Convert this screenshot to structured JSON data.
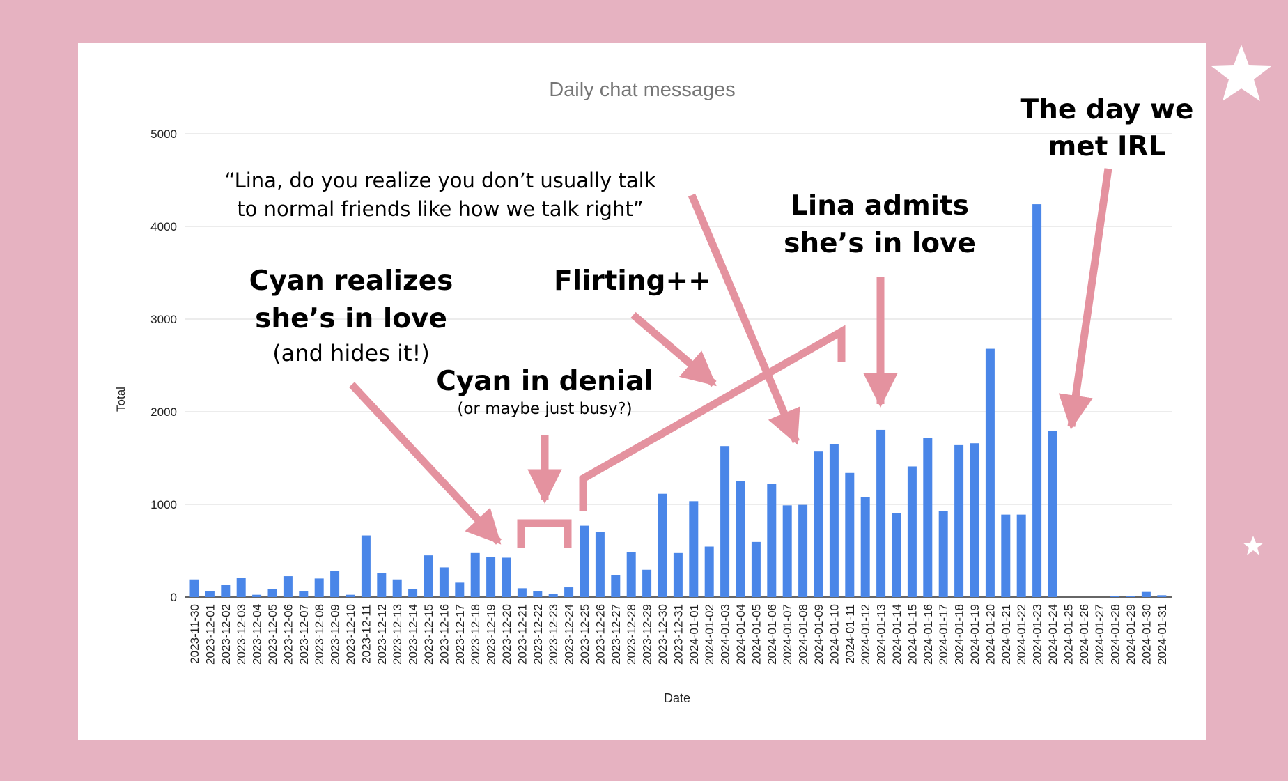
{
  "colors": {
    "page_background": "#e6b2c1",
    "card_background": "#ffffff",
    "bar": "#4a86e8",
    "annotation": "#e4929f",
    "gridline": "#d9d9d9",
    "axis_text": "#222222",
    "title_text": "#757575"
  },
  "decorations": [
    "star-icon",
    "star-icon"
  ],
  "chart_data": {
    "type": "bar",
    "title": "Daily chat messages",
    "xlabel": "Date",
    "ylabel": "Total",
    "ylim": [
      0,
      5000
    ],
    "yticks": [
      0,
      1000,
      2000,
      3000,
      4000,
      5000
    ],
    "grid": true,
    "legend": "none",
    "categories": [
      "2023-11-30",
      "2023-12-01",
      "2023-12-02",
      "2023-12-03",
      "2023-12-04",
      "2023-12-05",
      "2023-12-06",
      "2023-12-07",
      "2023-12-08",
      "2023-12-09",
      "2023-12-10",
      "2023-12-11",
      "2023-12-12",
      "2023-12-13",
      "2023-12-14",
      "2023-12-15",
      "2023-12-16",
      "2023-12-17",
      "2023-12-18",
      "2023-12-19",
      "2023-12-20",
      "2023-12-21",
      "2023-12-22",
      "2023-12-23",
      "2023-12-24",
      "2023-12-25",
      "2023-12-26",
      "2023-12-27",
      "2023-12-28",
      "2023-12-29",
      "2023-12-30",
      "2023-12-31",
      "2024-01-01",
      "2024-01-02",
      "2024-01-03",
      "2024-01-04",
      "2024-01-05",
      "2024-01-06",
      "2024-01-07",
      "2024-01-08",
      "2024-01-09",
      "2024-01-10",
      "2024-01-11",
      "2024-01-12",
      "2024-01-13",
      "2024-01-14",
      "2024-01-15",
      "2024-01-16",
      "2024-01-17",
      "2024-01-18",
      "2024-01-19",
      "2024-01-20",
      "2024-01-21",
      "2024-01-22",
      "2024-01-23",
      "2024-01-24",
      "2024-01-25",
      "2024-01-26",
      "2024-01-27",
      "2024-01-28",
      "2024-01-29",
      "2024-01-30",
      "2024-01-31"
    ],
    "values": [
      190,
      60,
      130,
      210,
      25,
      85,
      225,
      60,
      200,
      285,
      25,
      665,
      260,
      190,
      85,
      450,
      320,
      155,
      475,
      430,
      425,
      95,
      60,
      35,
      105,
      770,
      700,
      240,
      485,
      295,
      1115,
      475,
      1035,
      545,
      1630,
      1250,
      595,
      1225,
      990,
      995,
      1570,
      1650,
      1340,
      1080,
      1805,
      905,
      1410,
      1720,
      925,
      1640,
      1660,
      2680,
      890,
      890,
      4240,
      1790,
      0,
      0,
      0,
      10,
      10,
      55,
      20
    ]
  },
  "annotations": {
    "cyan_realizes": {
      "line1": "Cyan realizes",
      "line2": "she’s in love",
      "line3": "(and hides it!)"
    },
    "cyan_denial": {
      "line1": "Cyan in denial",
      "line2": "(or maybe just busy?)"
    },
    "flirting": {
      "line1": "Flirting++"
    },
    "quote": {
      "line1": "“Lina, do you realize you don’t usually talk",
      "line2": "to normal friends like how we talk right”"
    },
    "lina_admits": {
      "line1": "Lina admits",
      "line2": "she’s in love"
    },
    "met_irl": {
      "line1": "The day we",
      "line2": "met IRL"
    }
  }
}
